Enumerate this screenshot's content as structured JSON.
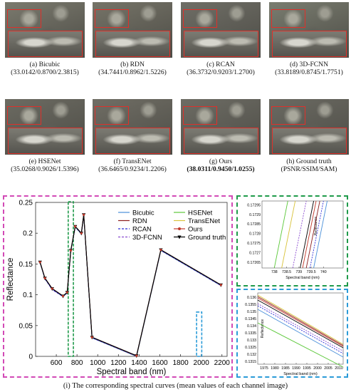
{
  "figure": {
    "panels": [
      {
        "id": "a",
        "label": "(a) Bicubic",
        "metrics": "(33.0142/0.8700/2.3815)",
        "bold": false,
        "tint": "#7b7a6e"
      },
      {
        "id": "b",
        "label": "(b) RDN",
        "metrics": "(34.7441/0.8962/1.5226)",
        "bold": false,
        "tint": "#767468"
      },
      {
        "id": "c",
        "label": "(c) RCAN",
        "metrics": "(36.3732/0.9203/1.2700)",
        "bold": false,
        "tint": "#6f6e66"
      },
      {
        "id": "d",
        "label": "(d) 3D-FCNN",
        "metrics": "(33.8189/0.8745/1.7751)",
        "bold": false,
        "tint": "#7a7d70"
      },
      {
        "id": "e",
        "label": "(e) HSENet",
        "metrics": "(35.0268/0.9026/1.5396)",
        "bold": false,
        "tint": "#6c6b62"
      },
      {
        "id": "f",
        "label": "(f) TransENet",
        "metrics": "(36.6465/0.9234/1.2206)",
        "bold": false,
        "tint": "#706e65"
      },
      {
        "id": "g",
        "label": "(g) Ours",
        "metrics": "(38.0311/0.9450/1.0255)",
        "bold": true,
        "tint": "#6d6c64"
      },
      {
        "id": "h",
        "label": "(h) Ground truth",
        "metrics": "(PSNR/SSIM/SAM)",
        "bold": false,
        "tint": "#6b6a62"
      }
    ],
    "bottom_caption": "(i) The corresponding spectral curves (mean values of each channel image)"
  },
  "colors": {
    "pink_box": "#d24ab6",
    "green_box": "#1f9a4a",
    "blue_box": "#2b9bd8",
    "zoom_box": "#e0302a"
  },
  "chart_data": [
    {
      "type": "line",
      "title": "",
      "xlabel": "Spectral band (nm)",
      "ylabel": "Reflectance",
      "xlim": [
        400,
        2250
      ],
      "ylim": [
        0,
        0.25
      ],
      "xticks": [
        600,
        800,
        1000,
        1200,
        1400,
        1600,
        1800,
        2000,
        2200
      ],
      "yticks": [
        0,
        0.05,
        0.1,
        0.15,
        0.2,
        0.25
      ],
      "x": [
        443,
        490,
        560,
        665,
        705,
        740,
        783,
        842,
        865,
        945,
        1375,
        1610,
        2190
      ],
      "series": [
        {
          "name": "Ground truth",
          "color": "#000000",
          "values": [
            0.153,
            0.127,
            0.11,
            0.098,
            0.104,
            0.172,
            0.211,
            0.2,
            0.23,
            0.031,
            0.001,
            0.173,
            0.116
          ]
        },
        {
          "name": "Ours",
          "color": "#c0392b",
          "values": [
            0.153,
            0.127,
            0.11,
            0.098,
            0.104,
            0.172,
            0.211,
            0.2,
            0.23,
            0.031,
            0.001,
            0.173,
            0.116
          ]
        },
        {
          "name": "RCAN",
          "color": "#2b2bd6",
          "values": [
            0.153,
            0.126,
            0.109,
            0.097,
            0.103,
            0.171,
            0.21,
            0.199,
            0.229,
            0.03,
            0.001,
            0.172,
            0.115
          ]
        },
        {
          "name": "3D-FCNN",
          "color": "#8a4ad0",
          "values": [
            0.152,
            0.126,
            0.108,
            0.097,
            0.103,
            0.171,
            0.21,
            0.199,
            0.229,
            0.03,
            0.0,
            0.172,
            0.115
          ]
        },
        {
          "name": "Bicubic",
          "color": "#4a90d9",
          "values": [
            0.152,
            0.126,
            0.109,
            0.097,
            0.103,
            0.172,
            0.21,
            0.199,
            0.229,
            0.03,
            0.0,
            0.172,
            0.115
          ]
        },
        {
          "name": "RDN",
          "color": "#8b1e1e",
          "values": [
            0.153,
            0.127,
            0.11,
            0.098,
            0.104,
            0.172,
            0.211,
            0.2,
            0.23,
            0.031,
            0.001,
            0.173,
            0.116
          ]
        },
        {
          "name": "HSENet",
          "color": "#5cc83a",
          "values": [
            0.152,
            0.126,
            0.109,
            0.097,
            0.103,
            0.171,
            0.21,
            0.199,
            0.229,
            0.03,
            0.0,
            0.172,
            0.115
          ]
        },
        {
          "name": "TransENet",
          "color": "#d8c23a",
          "values": [
            0.153,
            0.127,
            0.11,
            0.098,
            0.104,
            0.172,
            0.211,
            0.2,
            0.23,
            0.031,
            0.001,
            0.173,
            0.116
          ]
        }
      ],
      "legend": {
        "placement": "top-right",
        "columns": 2,
        "entries": [
          "Bicubic",
          "HSENet",
          "RDN",
          "TransENet",
          "RCAN",
          "Ours",
          "3D-FCNN",
          "Ground truth"
        ]
      }
    },
    {
      "type": "line",
      "title": "",
      "xlabel": "Spectral band (nm)",
      "ylabel": "Reflectance",
      "xlim": [
        737.5,
        740.8
      ],
      "ylim": [
        0.17262,
        0.17297
      ],
      "xticks": [
        738,
        738.5,
        739,
        739.5,
        740
      ],
      "xtick_labels": [
        "738",
        "738.5",
        "739",
        "739.5",
        "740"
      ],
      "yticks": [
        0.17265,
        0.1727,
        0.17275,
        0.1728,
        0.17285,
        0.1729,
        0.17295
      ],
      "ytick_labels": [
        "0.17265",
        "0.1727",
        "0.17275",
        "0.1728",
        "0.17285",
        "0.1729",
        "0.17295"
      ],
      "series": [
        {
          "name": "HSENet",
          "color": "#5cc83a",
          "x": [
            738.0,
            738.55
          ],
          "values": [
            0.17262,
            0.17297
          ]
        },
        {
          "name": "TransENet",
          "color": "#d8c23a",
          "x": [
            738.3,
            738.85
          ],
          "values": [
            0.17262,
            0.17297
          ]
        },
        {
          "name": "3D-FCNN",
          "color": "#8a4ad0",
          "x": [
            738.75,
            739.3
          ],
          "values": [
            0.17262,
            0.17297
          ]
        },
        {
          "name": "Ground truth",
          "color": "#000000",
          "x": [
            739.05,
            739.6
          ],
          "values": [
            0.17262,
            0.17297
          ]
        },
        {
          "name": "Ours",
          "color": "#c0392b",
          "x": [
            739.15,
            739.7
          ],
          "values": [
            0.17262,
            0.17297
          ]
        },
        {
          "name": "RDN",
          "color": "#8b1e1e",
          "x": [
            739.3,
            739.85
          ],
          "values": [
            0.17262,
            0.17297
          ]
        },
        {
          "name": "RCAN",
          "color": "#2b2bd6",
          "x": [
            739.45,
            740.0
          ],
          "values": [
            0.17262,
            0.17297
          ]
        },
        {
          "name": "Bicubic",
          "color": "#4a90d9",
          "x": [
            739.6,
            740.15
          ],
          "values": [
            0.17262,
            0.17297
          ]
        }
      ]
    },
    {
      "type": "line",
      "title": "",
      "xlabel": "Spectral band (nm)",
      "ylabel": "Reflectance",
      "xlim": [
        1972,
        2012
      ],
      "ylim": [
        0.1313,
        0.1363
      ],
      "xticks": [
        1975,
        1980,
        1985,
        1990,
        1995,
        2000,
        2005,
        2010
      ],
      "yticks": [
        0.1315,
        0.132,
        0.1325,
        0.133,
        0.1335,
        0.134,
        0.1345,
        0.135,
        0.1355,
        0.136
      ],
      "x": [
        1972,
        2012
      ],
      "series": [
        {
          "name": "TransENet",
          "color": "#d8c23a",
          "values": [
            0.13615,
            0.1327
          ]
        },
        {
          "name": "RDN",
          "color": "#8b1e1e",
          "values": [
            0.13605,
            0.13262
          ]
        },
        {
          "name": "Ours",
          "color": "#c0392b",
          "values": [
            0.13595,
            0.13255
          ]
        },
        {
          "name": "Ground truth",
          "color": "#000000",
          "values": [
            0.1358,
            0.13245
          ]
        },
        {
          "name": "3D-FCNN",
          "color": "#8a4ad0",
          "values": [
            0.13555,
            0.13222
          ]
        },
        {
          "name": "RCAN",
          "color": "#2b2bd6",
          "values": [
            0.1354,
            0.13205
          ]
        },
        {
          "name": "Bicubic",
          "color": "#4a90d9",
          "values": [
            0.13515,
            0.1318
          ]
        },
        {
          "name": "HSENet",
          "color": "#5cc83a",
          "values": [
            0.1342,
            0.1311
          ]
        }
      ]
    }
  ]
}
